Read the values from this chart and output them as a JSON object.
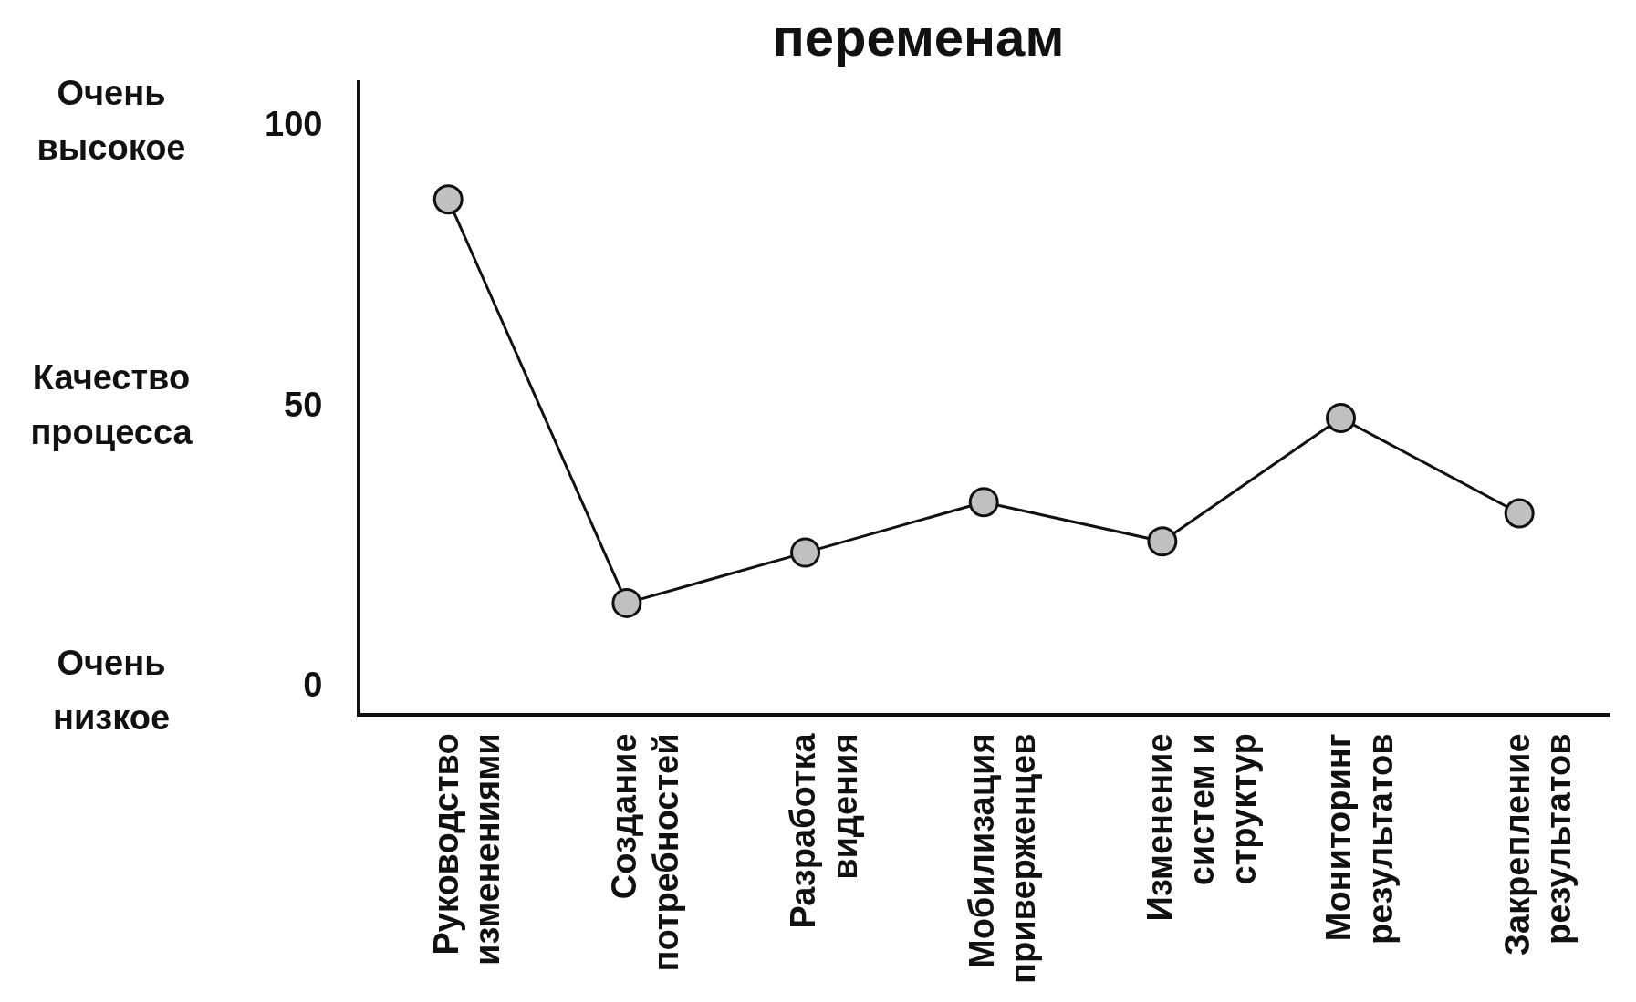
{
  "chart_data": {
    "type": "line",
    "title": "переменам",
    "ylabel": "Качество процесса",
    "categories": [
      "Руководство изменениями",
      "Создание потребностей",
      "Разработка видения",
      "Мобилизация приверженцев",
      "Изменение систем и структур",
      "Мониторинг результатов",
      "Закрепление результатов"
    ],
    "series": [
      {
        "color": "#c0c0c0",
        "values": [
          87,
          15,
          24,
          33,
          26,
          48,
          31
        ]
      }
    ],
    "ylim": [
      -5,
      108
    ],
    "yticks": [
      0,
      50,
      100
    ],
    "grid": false,
    "legend": false,
    "marker": "circle",
    "line_style": "solid",
    "annotations": [
      "Очень высокое",
      "Очень низкое"
    ]
  }
}
